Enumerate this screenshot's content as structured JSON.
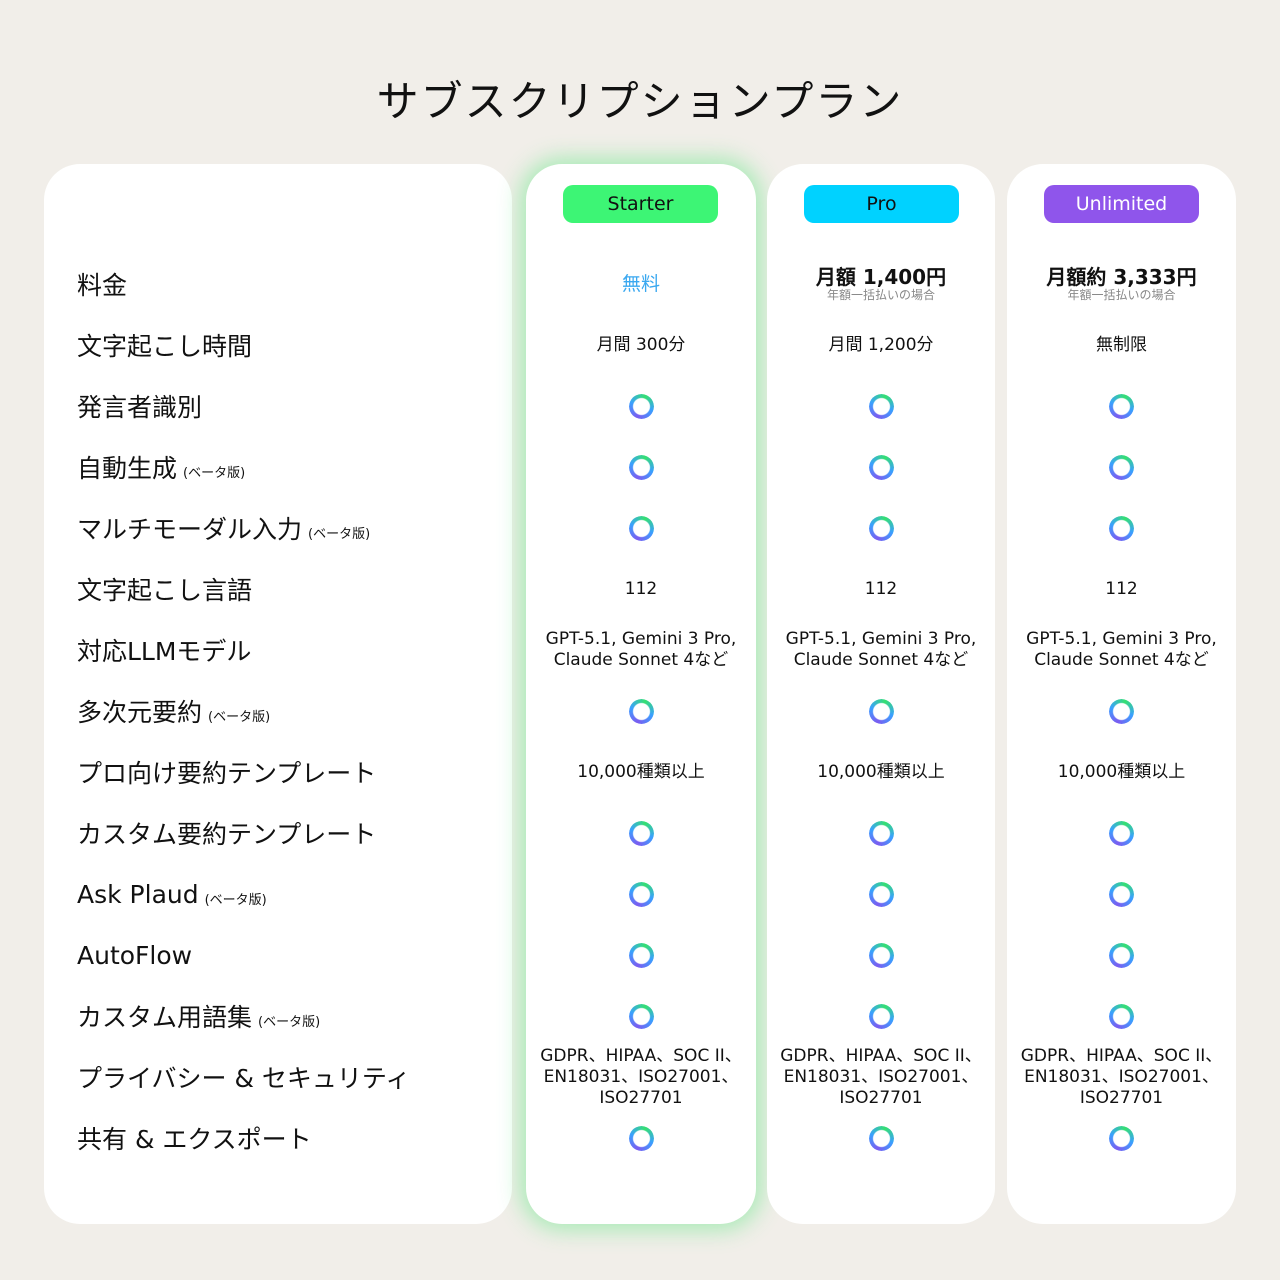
{
  "title": "サブスクリプションプラン",
  "features": [
    {
      "label": "料金"
    },
    {
      "label": "文字起こし時間"
    },
    {
      "label": "発言者識別"
    },
    {
      "label": "自動生成",
      "beta": "(ベータ版)"
    },
    {
      "label": "マルチモーダル入力",
      "beta": "(ベータ版)"
    },
    {
      "label": "文字起こし言語"
    },
    {
      "label": "対応LLMモデル"
    },
    {
      "label": "多次元要約",
      "beta": "(ベータ版)"
    },
    {
      "label": "プロ向け要約テンプレート"
    },
    {
      "label": "カスタム要約テンプレート"
    },
    {
      "label": "Ask Plaud",
      "beta": "(ベータ版)"
    },
    {
      "label": "AutoFlow"
    },
    {
      "label": "カスタム用語集",
      "beta": "(ベータ版)"
    },
    {
      "label": "プライバシー & セキュリティ"
    },
    {
      "label": "共有 & エクスポート"
    }
  ],
  "plans": [
    {
      "name": "Starter",
      "color": "#3df575",
      "text_color": "#111111",
      "cells": [
        {
          "free": "無料"
        },
        {
          "text": "月間 300分"
        },
        {
          "check": true
        },
        {
          "check": true
        },
        {
          "check": true
        },
        {
          "text": "112"
        },
        {
          "text": "GPT-5.1, Gemini 3 Pro,\nClaude Sonnet 4など"
        },
        {
          "check": true
        },
        {
          "text": "10,000種類以上"
        },
        {
          "check": true
        },
        {
          "check": true
        },
        {
          "check": true
        },
        {
          "check": true
        },
        {
          "text": "GDPR、HIPAA、SOC II、\nEN18031、ISO27001、\nISO27701"
        },
        {
          "check": true
        }
      ]
    },
    {
      "name": "Pro",
      "color": "#00d2ff",
      "text_color": "#111111",
      "cells": [
        {
          "price": "月額 1,400円",
          "sub": "年額一括払いの場合"
        },
        {
          "text": "月間 1,200分"
        },
        {
          "check": true
        },
        {
          "check": true
        },
        {
          "check": true
        },
        {
          "text": "112"
        },
        {
          "text": "GPT-5.1, Gemini 3 Pro,\nClaude Sonnet 4など"
        },
        {
          "check": true
        },
        {
          "text": "10,000種類以上"
        },
        {
          "check": true
        },
        {
          "check": true
        },
        {
          "check": true
        },
        {
          "check": true
        },
        {
          "text": "GDPR、HIPAA、SOC II、\nEN18031、ISO27001、\nISO27701"
        },
        {
          "check": true
        }
      ]
    },
    {
      "name": "Unlimited",
      "color": "#8f55eb",
      "text_color": "#ffffff",
      "cells": [
        {
          "price": "月額約 3,333円",
          "sub": "年額一括払いの場合"
        },
        {
          "text": "無制限"
        },
        {
          "check": true
        },
        {
          "check": true
        },
        {
          "check": true
        },
        {
          "text": "112"
        },
        {
          "text": "GPT-5.1, Gemini 3 Pro,\nClaude Sonnet 4など"
        },
        {
          "check": true
        },
        {
          "text": "10,000種類以上"
        },
        {
          "check": true
        },
        {
          "check": true
        },
        {
          "check": true
        },
        {
          "check": true
        },
        {
          "text": "GDPR、HIPAA、SOC II、\nEN18031、ISO27001、\nISO27701"
        },
        {
          "check": true
        }
      ]
    }
  ]
}
